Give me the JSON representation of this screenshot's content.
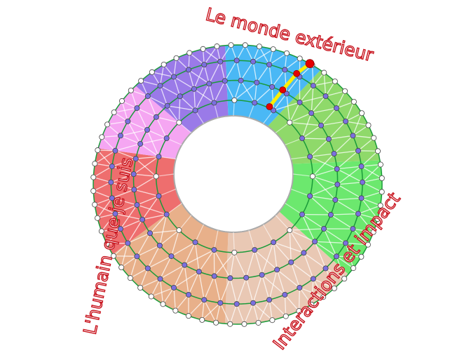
{
  "labels": {
    "top": "Le monde extérieur",
    "left": "L'humain que je suis",
    "bottom_right": "Interactions et impact"
  },
  "colors": {
    "label_outline": "#c8141e",
    "ring_line": "#1a9a3a",
    "ring_dot": "#7b6fe0",
    "boundary_dot": "#ffffff",
    "path_line": "#ffee00",
    "path_dot": "#e60000",
    "sectors": [
      "#4ab8f5",
      "#8fd96a",
      "#6ce86e",
      "#e9c8b4",
      "#e8b08a",
      "#ee6e6e",
      "#f5a6f2",
      "#9a7ae8"
    ]
  },
  "sector_names": [
    "blue-sector",
    "yellow-green-sector",
    "green-sector",
    "light-peach-sector",
    "peach-sector",
    "red-sector",
    "pink-sector",
    "purple-sector"
  ]
}
